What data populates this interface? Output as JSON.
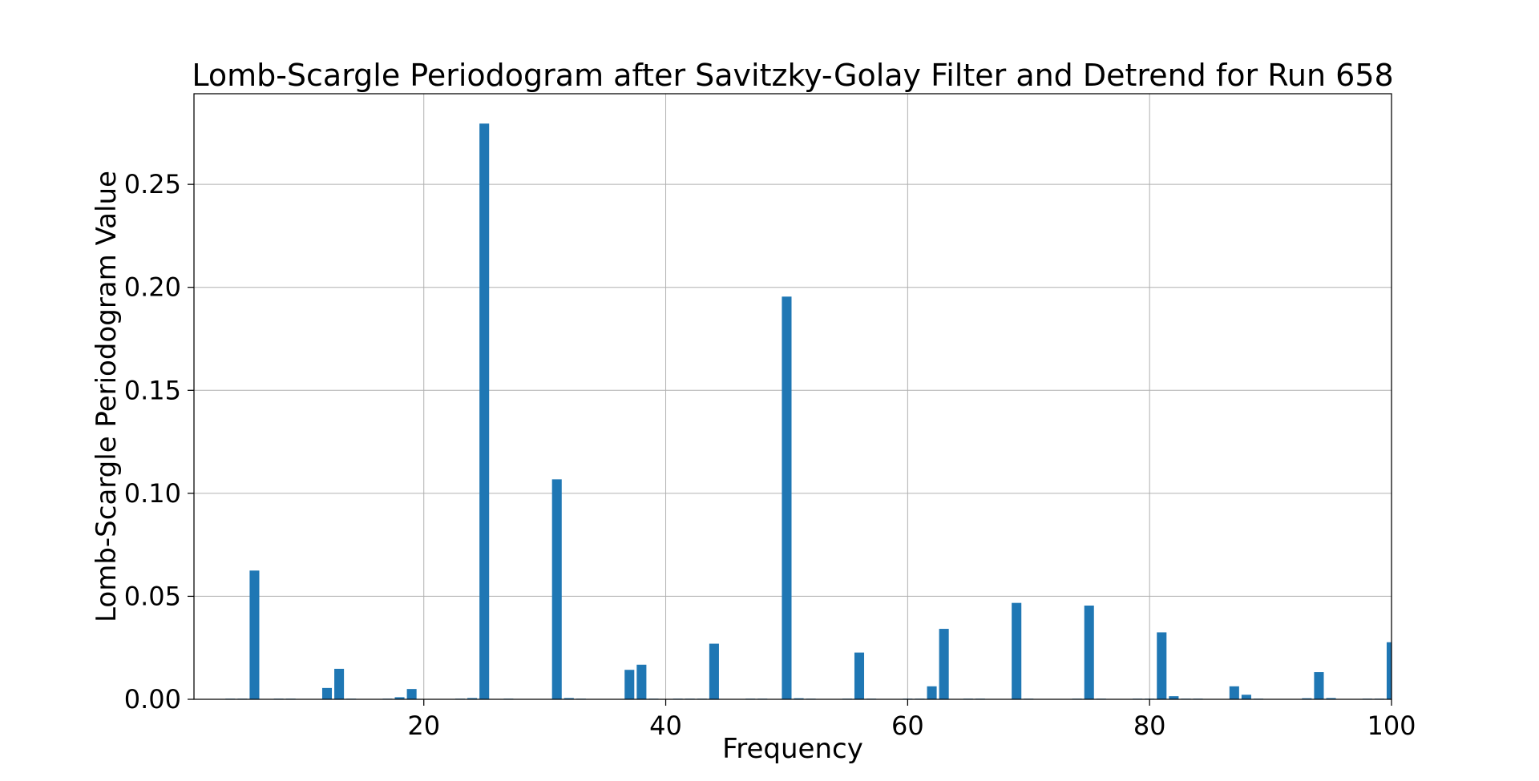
{
  "chart_data": {
    "type": "bar",
    "title": "Lomb-Scargle Periodogram after Savitzky-Golay Filter and Detrend for Run 658",
    "xlabel": "Frequency",
    "ylabel": "Lomb-Scargle Periodogram Value",
    "xlim": [
      1,
      100
    ],
    "ylim": [
      0,
      0.294
    ],
    "xticks": [
      20,
      40,
      60,
      80,
      100
    ],
    "xtick_labels": [
      "20",
      "40",
      "60",
      "80",
      "100"
    ],
    "yticks": [
      0.0,
      0.05,
      0.1,
      0.15,
      0.2,
      0.25
    ],
    "ytick_labels": [
      "0.00",
      "0.05",
      "0.10",
      "0.15",
      "0.20",
      "0.25"
    ],
    "grid": true,
    "bar_width": 0.8,
    "bar_color": "#1f77b4",
    "x": [
      4,
      5,
      6,
      8,
      9,
      12,
      13,
      14,
      17,
      18,
      19,
      23,
      24,
      25,
      27,
      31,
      32,
      33,
      37,
      38,
      39,
      41,
      42,
      43,
      44,
      47,
      48,
      50,
      51,
      52,
      55,
      56,
      57,
      60,
      61,
      62,
      63,
      65,
      66,
      69,
      70,
      74,
      75,
      76,
      79,
      80,
      81,
      82,
      83,
      84,
      87,
      88,
      89,
      93,
      94,
      95,
      98,
      99,
      100
    ],
    "values": [
      0.0003,
      0.0003,
      0.0625,
      0.0003,
      0.0003,
      0.0055,
      0.0148,
      0.0003,
      0.0003,
      0.001,
      0.005,
      0.0003,
      0.0006,
      0.2795,
      0.0003,
      0.1068,
      0.0006,
      0.0003,
      0.0143,
      0.0168,
      0.0003,
      0.0003,
      0.0003,
      0.0003,
      0.027,
      0.0003,
      0.0003,
      0.1955,
      0.0005,
      0.0003,
      0.0003,
      0.0227,
      0.0003,
      0.0003,
      0.0003,
      0.0063,
      0.0342,
      0.0003,
      0.0003,
      0.0468,
      0.0003,
      0.0003,
      0.0455,
      0.0003,
      0.0003,
      0.0003,
      0.0325,
      0.0015,
      0.0003,
      0.0003,
      0.0063,
      0.0022,
      0.0003,
      0.0005,
      0.0132,
      0.0006,
      0.0003,
      0.0003,
      0.0277
    ]
  }
}
